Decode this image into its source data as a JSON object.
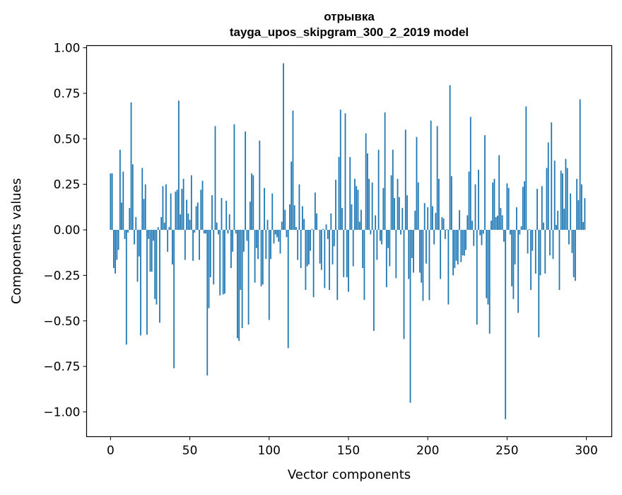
{
  "chart_data": {
    "type": "bar",
    "title": [
      "отрывка",
      "tayga_upos_skipgram_300_2_2019 model"
    ],
    "xlabel": "Vector components",
    "ylabel": "Components values",
    "xlim": [
      -15.1,
      316
    ],
    "ylim": [
      -1.136,
      1.012
    ],
    "xticks": [
      0,
      50,
      100,
      150,
      200,
      250,
      300
    ],
    "xtick_labels": [
      "0",
      "50",
      "100",
      "150",
      "200",
      "250",
      "300"
    ],
    "yticks": [
      -1.0,
      -0.75,
      -0.5,
      -0.25,
      0.0,
      0.25,
      0.5,
      0.75,
      1.0
    ],
    "ytick_labels": [
      "−1.00",
      "−0.75",
      "−0.50",
      "−0.25",
      "0.00",
      "0.25",
      "0.50",
      "0.75",
      "1.00"
    ],
    "grid": false,
    "bar_color": "#1f77b4",
    "values": [
      0.31,
      0.31,
      -0.21,
      -0.24,
      -0.165,
      -0.11,
      0.44,
      0.15,
      0.32,
      -0.05,
      -0.63,
      -0.015,
      0.12,
      0.7,
      0.36,
      -0.08,
      0.07,
      -0.285,
      -0.146,
      -0.58,
      0.34,
      0.17,
      0.25,
      -0.576,
      -0.05,
      -0.23,
      -0.23,
      -0.06,
      -0.38,
      -0.41,
      0.015,
      -0.51,
      0.07,
      0.24,
      0.04,
      0.25,
      -0.12,
      0.015,
      0.2,
      -0.19,
      -0.76,
      0.21,
      0.22,
      0.71,
      0.085,
      0.225,
      0.28,
      -0.165,
      0.165,
      0.09,
      0.055,
      0.3,
      -0.17,
      -0.015,
      0.13,
      0.15,
      -0.165,
      0.22,
      0.27,
      -0.02,
      -0.02,
      -0.8,
      -0.43,
      -0.26,
      0.19,
      -0.3,
      0.57,
      0.04,
      -0.025,
      -0.36,
      0.175,
      -0.355,
      -0.35,
      0.16,
      -0.02,
      0.085,
      -0.21,
      -0.12,
      0.58,
      -0.02,
      -0.595,
      -0.61,
      -0.33,
      -0.54,
      -0.12,
      0.54,
      -0.06,
      -0.52,
      0.155,
      0.31,
      0.3,
      -0.29,
      -0.1,
      -0.16,
      0.49,
      -0.31,
      -0.3,
      0.23,
      -0.16,
      0.055,
      -0.495,
      -0.16,
      0.2,
      -0.075,
      -0.025,
      -0.04,
      -0.065,
      -0.13,
      0.045,
      0.915,
      0.11,
      -0.04,
      -0.65,
      0.14,
      0.375,
      0.655,
      0.135,
      0.015,
      -0.165,
      0.25,
      -0.21,
      0.13,
      0.06,
      -0.33,
      -0.2,
      -0.19,
      -0.115,
      0.005,
      -0.37,
      0.205,
      0.09,
      0.0,
      -0.185,
      -0.22,
      0.005,
      -0.32,
      0.03,
      -0.05,
      -0.33,
      0.09,
      -0.19,
      -0.09,
      0.275,
      -0.385,
      0.4,
      0.66,
      0.12,
      -0.26,
      0.64,
      -0.26,
      -0.34,
      0.4,
      0.14,
      -0.2,
      0.28,
      0.24,
      0.22,
      0.045,
      0.11,
      -0.21,
      -0.385,
      0.53,
      0.42,
      0.28,
      -0.025,
      0.26,
      -0.555,
      0.08,
      -0.165,
      0.44,
      -0.06,
      -0.08,
      0.23,
      0.645,
      -0.315,
      -0.1,
      -0.2,
      0.3,
      0.44,
      0.175,
      -0.265,
      0.28,
      0.18,
      -0.026,
      0.12,
      -0.6,
      0.55,
      0.19,
      -0.27,
      -0.95,
      -0.155,
      -0.235,
      0.105,
      0.51,
      0.26,
      -0.235,
      -0.29,
      -0.39,
      0.147,
      -0.185,
      0.124,
      -0.386,
      0.6,
      0.13,
      -0.08,
      0.093,
      0.57,
      0.28,
      -0.27,
      0.07,
      0.062,
      -0.05,
      0.004,
      -0.41,
      0.795,
      0.295,
      -0.25,
      -0.21,
      -0.17,
      -0.19,
      0.108,
      -0.177,
      -0.14,
      -0.142,
      -0.11,
      0.08,
      0.32,
      0.62,
      0.05,
      -0.088,
      0.25,
      -0.52,
      0.33,
      -0.03,
      -0.084,
      -0.022,
      0.52,
      -0.375,
      -0.41,
      -0.57,
      0.05,
      0.26,
      0.28,
      0.07,
      0.078,
      0.41,
      0.12,
      0.08,
      -0.065,
      -1.04,
      0.255,
      0.23,
      -0.026,
      -0.31,
      -0.38,
      -0.19,
      0.124,
      -0.456,
      -0.026,
      0.02,
      0.236,
      0.267,
      0.678,
      -0.13,
      0.004,
      -0.33,
      -0.115,
      0.0,
      -0.24,
      0.225,
      -0.59,
      -0.25,
      0.24,
      0.04,
      -0.24,
      0.34,
      0.48,
      -0.14,
      0.59,
      -0.16,
      0.38,
      0.027,
      0.105,
      -0.33,
      0.325,
      0.31,
      0.116,
      0.39,
      0.34,
      -0.08,
      0.2,
      -0.127,
      -0.26,
      -0.28,
      0.28,
      0.163,
      0.717,
      0.25,
      0.043,
      0.174
    ]
  }
}
